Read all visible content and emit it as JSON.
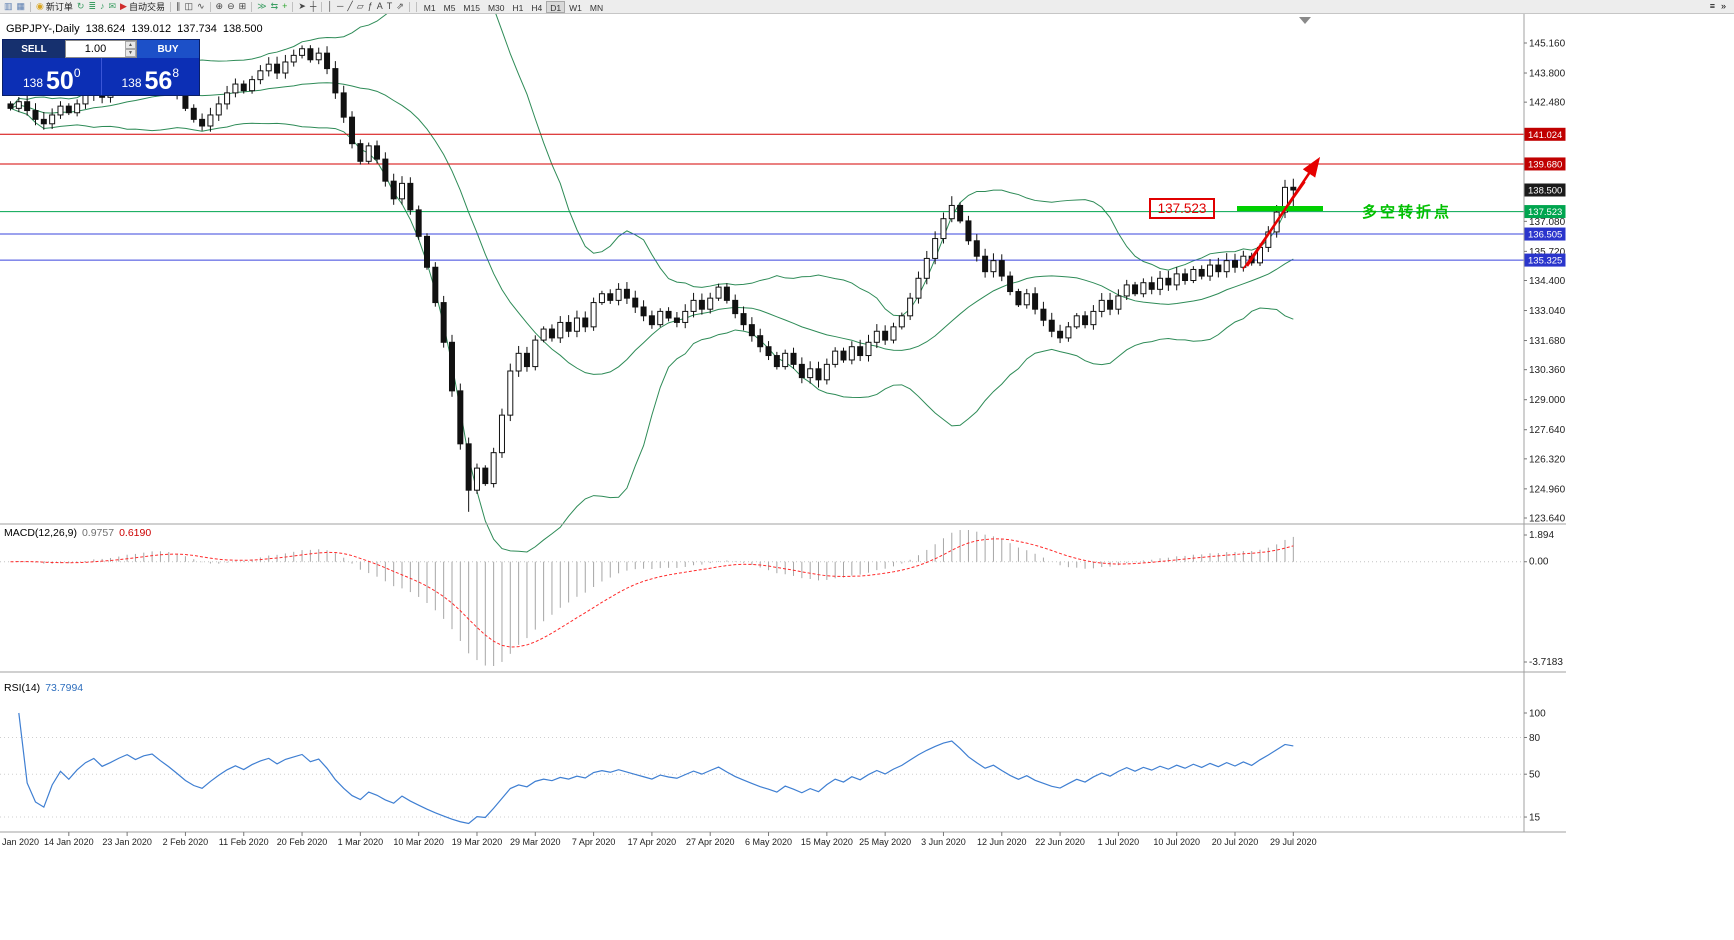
{
  "toolbar": {
    "items": [
      {
        "name": "new-chart",
        "glyph": "▥",
        "color": "#5b7db1"
      },
      {
        "name": "chart-profiles",
        "glyph": "▦",
        "color": "#5b7db1"
      },
      {
        "sep": true
      },
      {
        "name": "new-order",
        "glyph": "◉",
        "color": "#d9a520",
        "label": "新订单"
      },
      {
        "name": "chart-cycle",
        "glyph": "↻",
        "color": "#3c9e63"
      },
      {
        "name": "depth-of-market",
        "glyph": "≣",
        "color": "#3c9e63"
      },
      {
        "name": "alerts",
        "glyph": "♪",
        "color": "#3c9e63"
      },
      {
        "name": "news",
        "glyph": "✉",
        "color": "#3c9e63"
      },
      {
        "name": "auto-trading",
        "glyph": "▶",
        "color": "#cf2b2b",
        "label": "自动交易"
      },
      {
        "sep": true
      },
      {
        "name": "bar-chart-mode",
        "glyph": "∥",
        "color": "#444444"
      },
      {
        "name": "candlestick-mode",
        "glyph": "◫",
        "color": "#444444"
      },
      {
        "name": "line-chart-mode",
        "glyph": "∿",
        "color": "#444444"
      },
      {
        "sep": true
      },
      {
        "name": "zoom-in",
        "glyph": "⊕",
        "color": "#444444"
      },
      {
        "name": "zoom-out",
        "glyph": "⊖",
        "color": "#444444"
      },
      {
        "name": "tile-windows",
        "glyph": "⊞",
        "color": "#444444"
      },
      {
        "sep": true
      },
      {
        "name": "auto-scroll",
        "glyph": "≫",
        "color": "#3c9e63"
      },
      {
        "name": "chart-shift",
        "glyph": "⇆",
        "color": "#3c9e63"
      },
      {
        "name": "indicators-add",
        "glyph": "+",
        "color": "#2aa52a"
      },
      {
        "sep": true
      },
      {
        "name": "cursor",
        "glyph": "➤",
        "color": "#444444"
      },
      {
        "name": "crosshair",
        "glyph": "┼",
        "color": "#444444"
      },
      {
        "sep": true
      },
      {
        "name": "vertical-line-tool",
        "glyph": "│",
        "color": "#444444"
      },
      {
        "name": "horizontal-line-tool",
        "glyph": "─",
        "color": "#444444"
      },
      {
        "name": "trendline-tool",
        "glyph": "╱",
        "color": "#444444"
      },
      {
        "name": "channel-tool",
        "glyph": "▱",
        "color": "#444444"
      },
      {
        "name": "fibonacci-tool",
        "glyph": "ƒ",
        "color": "#444444"
      },
      {
        "name": "text-tool",
        "glyph": "A",
        "color": "#444444"
      },
      {
        "name": "label-tool",
        "glyph": "T",
        "color": "#444444"
      },
      {
        "name": "arrows-tool",
        "glyph": "⇗",
        "color": "#444444"
      },
      {
        "sep": true
      }
    ],
    "timeframes": [
      "M1",
      "M5",
      "M15",
      "M30",
      "H1",
      "H4",
      "D1",
      "W1",
      "MN"
    ],
    "active_timeframe": "D1",
    "right_items": [
      {
        "name": "toolbar-customize",
        "glyph": "≡"
      },
      {
        "name": "toolbar-more",
        "glyph": "»"
      }
    ]
  },
  "chart_title": {
    "symbol": "GBPJPY-,Daily",
    "open": "138.624",
    "high": "139.012",
    "low": "137.734",
    "close": "138.500"
  },
  "trade_panel": {
    "sell_label": "SELL",
    "buy_label": "BUY",
    "volume": "1.00",
    "spin_up": "▲",
    "spin_down": "▼",
    "bid": {
      "main": "138",
      "big": "50",
      "sup": "0"
    },
    "ask": {
      "main": "138",
      "big": "56",
      "sup": "8"
    }
  },
  "annotations": {
    "price_box": "137.523",
    "note": "多空转折点"
  },
  "indicators": {
    "macd": {
      "label": "MACD(12,26,9)",
      "value1": "0.9757",
      "value2": "0.6190",
      "axis": [
        "1.894",
        "0.00",
        "-3.7183"
      ]
    },
    "rsi": {
      "label": "RSI(14)",
      "value": "73.7994",
      "axis": [
        "100",
        "80",
        "50",
        "15"
      ]
    }
  },
  "chart_data": {
    "type": "candlestick",
    "symbol": "GBPJPY-",
    "timeframe": "Daily",
    "closes": [
      142.2,
      142.5,
      142.1,
      141.7,
      141.5,
      141.9,
      142.3,
      142.0,
      142.4,
      142.8,
      143.1,
      142.7,
      143.0,
      143.4,
      143.8,
      143.5,
      143.9,
      144.1,
      143.7,
      143.3,
      142.8,
      142.2,
      141.7,
      141.4,
      141.9,
      142.4,
      142.9,
      143.3,
      143.0,
      143.5,
      143.9,
      144.2,
      143.8,
      144.3,
      144.6,
      144.9,
      144.4,
      144.7,
      144.0,
      142.9,
      141.8,
      140.6,
      139.8,
      140.5,
      139.9,
      138.9,
      138.1,
      138.8,
      137.6,
      136.4,
      135.0,
      133.4,
      131.6,
      129.4,
      127.0,
      124.9,
      125.9,
      125.2,
      126.6,
      128.3,
      130.3,
      131.1,
      130.5,
      131.7,
      132.2,
      131.8,
      132.5,
      132.1,
      132.7,
      132.3,
      133.4,
      133.8,
      133.5,
      134.0,
      133.6,
      133.2,
      132.8,
      132.4,
      133.0,
      132.7,
      132.5,
      133.0,
      133.5,
      133.1,
      133.6,
      134.1,
      133.5,
      132.9,
      132.4,
      131.9,
      131.4,
      131.0,
      130.5,
      131.1,
      130.6,
      130.0,
      130.4,
      129.9,
      130.6,
      131.2,
      130.8,
      131.4,
      131.0,
      131.6,
      132.1,
      131.7,
      132.3,
      132.8,
      133.6,
      134.5,
      135.4,
      136.3,
      137.2,
      137.8,
      137.1,
      136.2,
      135.5,
      134.8,
      135.3,
      134.6,
      133.9,
      133.3,
      133.8,
      133.1,
      132.6,
      132.1,
      131.8,
      132.3,
      132.8,
      132.4,
      133.0,
      133.5,
      133.1,
      133.7,
      134.2,
      133.8,
      134.3,
      134.0,
      134.5,
      134.2,
      134.7,
      134.4,
      134.9,
      134.6,
      135.1,
      134.8,
      135.3,
      135.0,
      135.5,
      135.2,
      135.9,
      136.6,
      137.5,
      138.62,
      138.5
    ],
    "last_candle": {
      "open": 138.624,
      "high": 139.012,
      "low": 137.734,
      "close": 138.5
    },
    "wick_overrides": {
      "35": {
        "h": 145.05
      },
      "55": {
        "l": 123.92
      },
      "97": {
        "l": 129.55
      },
      "113": {
        "h": 138.22
      }
    },
    "price_axis": {
      "min": 123.64,
      "max": 145.16,
      "labels": [
        "145.160",
        "143.800",
        "142.480",
        "137.080",
        "135.720",
        "134.400",
        "133.040",
        "131.680",
        "130.360",
        "129.000",
        "127.640",
        "126.320",
        "124.960",
        "123.640"
      ]
    },
    "price_tags": [
      {
        "text": "141.024",
        "value": 141.024,
        "bg": "#c00000"
      },
      {
        "text": "139.680",
        "value": 139.68,
        "bg": "#c00000"
      },
      {
        "text": "138.500",
        "value": 138.5,
        "bg": "#1b1b1b"
      },
      {
        "text": "137.523",
        "value": 137.523,
        "bg": "#00a54f"
      },
      {
        "text": "136.505",
        "value": 136.505,
        "bg": "#2a35cc"
      },
      {
        "text": "135.325",
        "value": 135.325,
        "bg": "#2a35cc"
      }
    ],
    "levels": [
      {
        "value": 141.024,
        "color": "#d40000"
      },
      {
        "value": 139.68,
        "color": "#d40000"
      },
      {
        "value": 137.523,
        "color": "#00a54f"
      },
      {
        "value": 136.505,
        "color": "#3a44dd"
      },
      {
        "value": 135.325,
        "color": "#3a44dd"
      }
    ],
    "bollinger": {
      "period": 20,
      "deviation": 2,
      "color": "#2e8b57"
    },
    "macd": {
      "fast": 12,
      "slow": 26,
      "signal": 9,
      "hist_color": "#a6a6a6",
      "signal_color": "#ff2a2a"
    },
    "rsi": {
      "period": 14,
      "color": "#3f7fd2",
      "levels": [
        80,
        50,
        15
      ]
    },
    "x_labels": [
      "Jan 2020",
      "14 Jan 2020",
      "23 Jan 2020",
      "2 Feb 2020",
      "11 Feb 2020",
      "20 Feb 2020",
      "1 Mar 2020",
      "10 Mar 2020",
      "19 Mar 2020",
      "29 Mar 2020",
      "7 Apr 2020",
      "17 Apr 2020",
      "27 Apr 2020",
      "6 May 2020",
      "15 May 2020",
      "25 May 2020",
      "3 Jun 2020",
      "12 Jun 2020",
      "22 Jun 2020",
      "1 Jul 2020",
      "10 Jul 2020",
      "20 Jul 2020",
      "29 Jul 2020"
    ],
    "bars_per_label": 7
  }
}
